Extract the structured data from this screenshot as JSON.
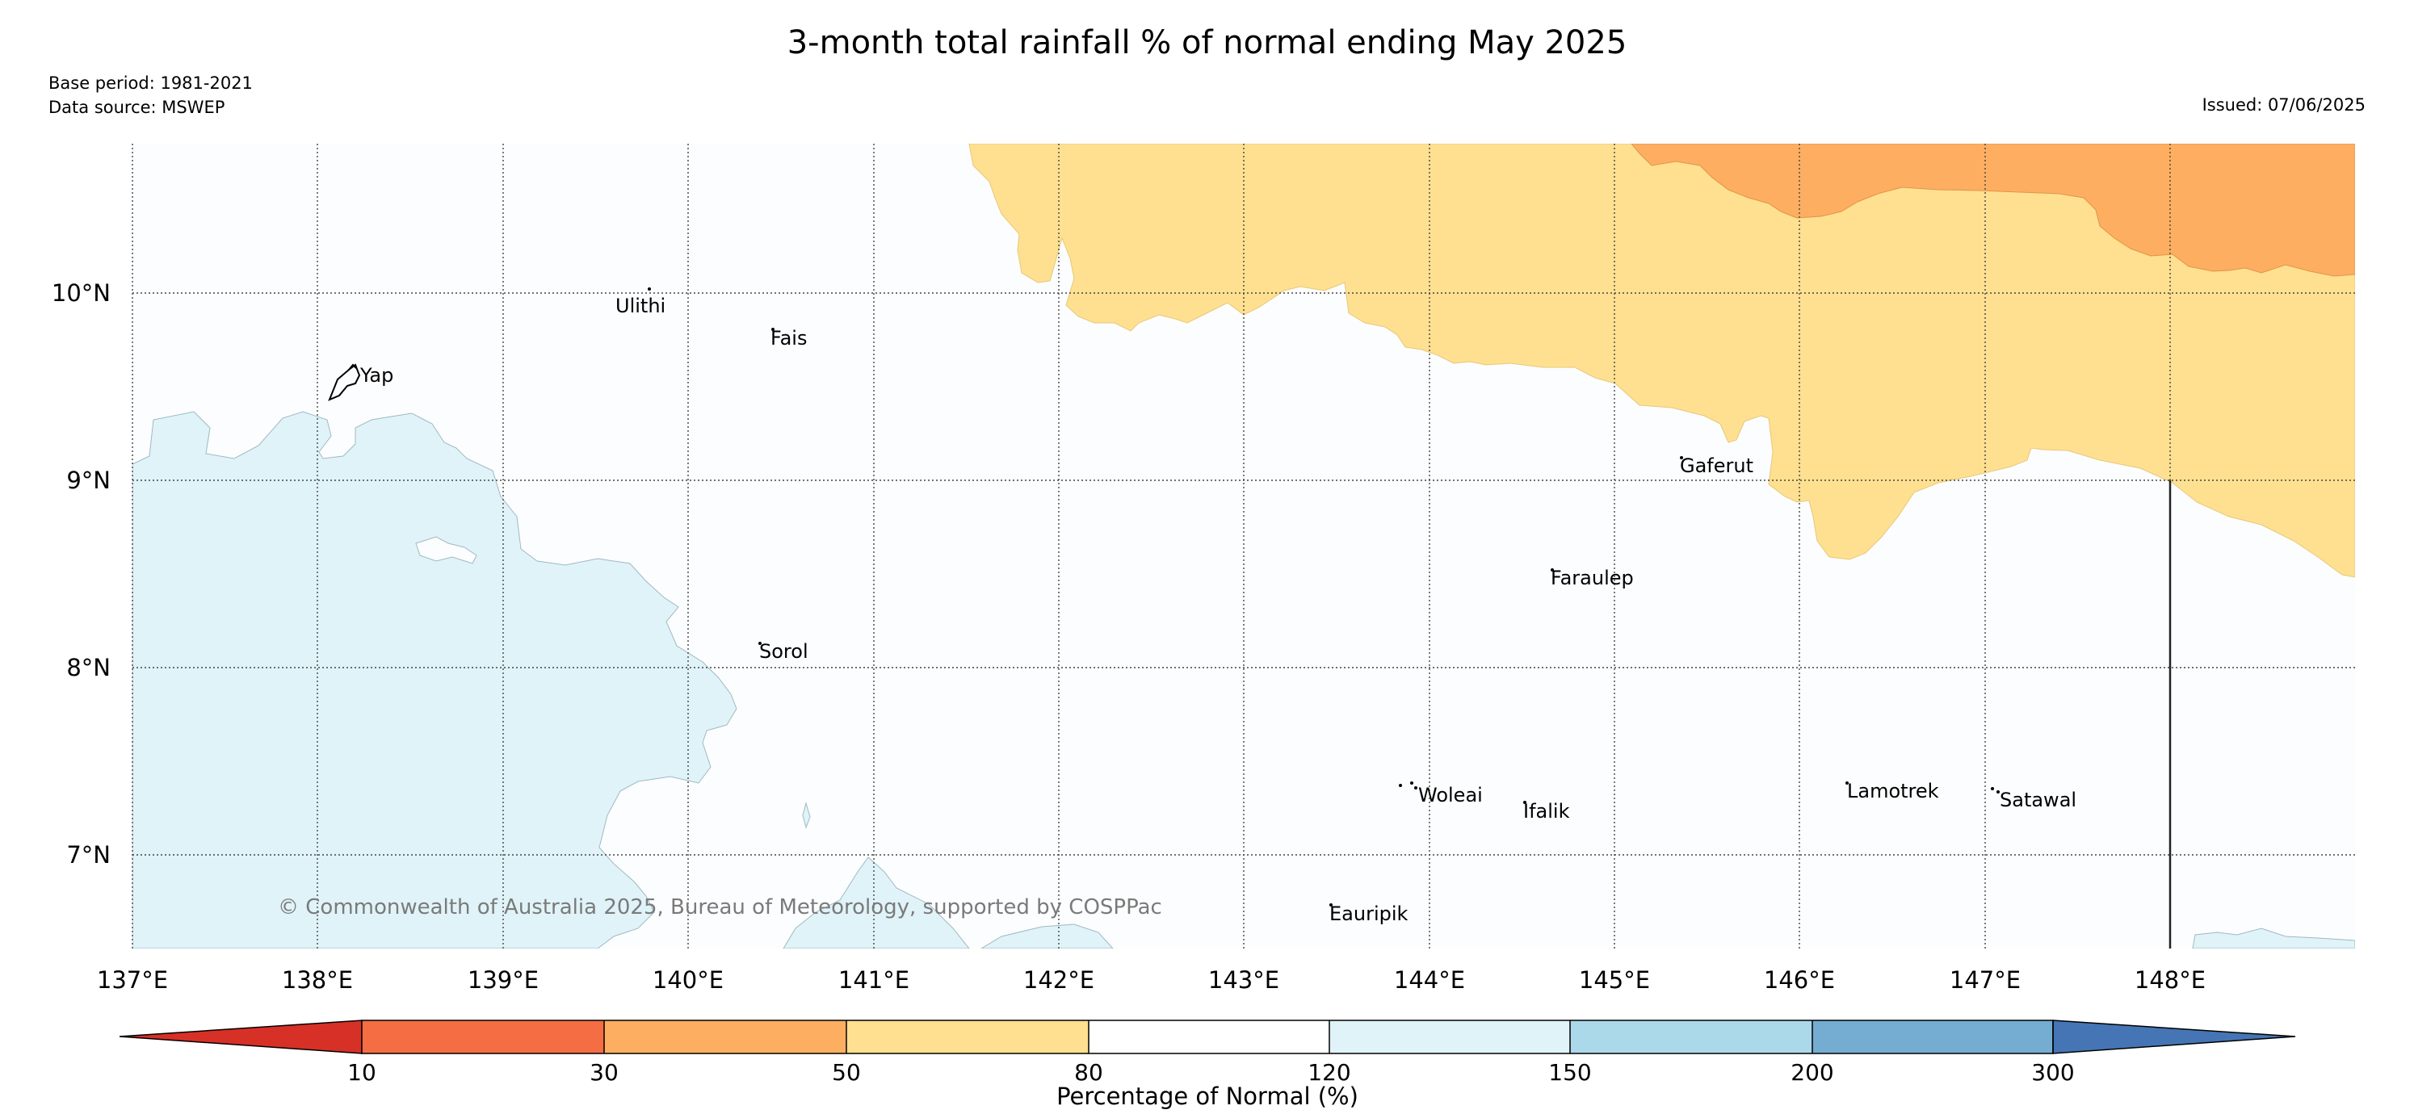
{
  "title": "3-month total rainfall % of normal ending May 2025",
  "meta": {
    "base_period": "Base period: 1981-2021",
    "data_source": "Data source: MSWEP",
    "issued": "Issued: 07/06/2025"
  },
  "map": {
    "lon_range": [
      137,
      149
    ],
    "lat_range": [
      6.5,
      10.8
    ],
    "lon_ticks": [
      "137°E",
      "138°E",
      "139°E",
      "140°E",
      "141°E",
      "142°E",
      "143°E",
      "144°E",
      "145°E",
      "146°E",
      "147°E",
      "148°E"
    ],
    "lat_ticks": [
      "10°N",
      "9°N",
      "8°N",
      "7°N"
    ],
    "credit": "© Commonwealth of Australia 2025, Bureau of Meteorology, supported by COSPPac",
    "islands": [
      {
        "name": "Yap",
        "lon": 138.2,
        "lat": 9.55
      },
      {
        "name": "Ulithi",
        "lon": 139.7,
        "lat": 9.95
      },
      {
        "name": "Fais",
        "lon": 140.5,
        "lat": 9.78
      },
      {
        "name": "Gaferut",
        "lon": 145.35,
        "lat": 9.08
      },
      {
        "name": "Faraulep",
        "lon": 144.5,
        "lat": 8.48
      },
      {
        "name": "Sorol",
        "lon": 140.4,
        "lat": 8.08
      },
      {
        "name": "Woleai",
        "lon": 143.9,
        "lat": 7.33
      },
      {
        "name": "Ifalik",
        "lon": 144.45,
        "lat": 7.24
      },
      {
        "name": "Lamotrek",
        "lon": 146.3,
        "lat": 7.35
      },
      {
        "name": "Satawal",
        "lon": 147.05,
        "lat": 7.3
      },
      {
        "name": "Eauripik",
        "lon": 143.05,
        "lat": 6.68
      }
    ]
  },
  "colorbar": {
    "title": "Percentage of Normal (%)",
    "ticks": [
      "10",
      "30",
      "50",
      "80",
      "120",
      "150",
      "200",
      "300"
    ],
    "colors": [
      "#d73027",
      "#f46d43",
      "#fdae61",
      "#fee090",
      "#ffffff",
      "#e0f3f8",
      "#abd9e9",
      "#74add1",
      "#4575b4"
    ]
  },
  "colors": {
    "orange_zone": "#fdae61",
    "yellow_zone": "#fee090",
    "lightblue_zone": "#e0f3f8",
    "background": "#fcfdfe"
  }
}
